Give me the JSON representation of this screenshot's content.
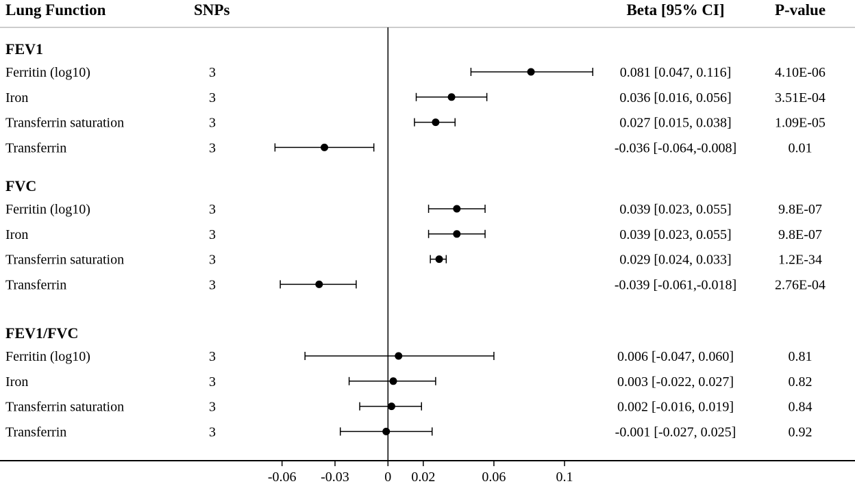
{
  "headers": {
    "lung_function": "Lung Function",
    "snps": "SNPs",
    "beta_ci": "Beta [95% CI]",
    "p_value": "P-value"
  },
  "colors": {
    "point": "#000000",
    "line": "#000000",
    "header_rule": "#bbbbbb"
  },
  "chart_data": {
    "type": "forest",
    "xlabel": "",
    "reference_line": 0,
    "x_ticks": [
      -0.06,
      -0.03,
      0,
      0.02,
      0.06,
      0.1
    ],
    "x_tick_labels": [
      "-0.06",
      "-0.03",
      "0",
      "0.02",
      "0.06",
      "0.1"
    ],
    "groups": [
      {
        "name": "FEV1",
        "rows": [
          {
            "label": "Ferritin (log10)",
            "snps": "3",
            "beta": 0.081,
            "lower": 0.047,
            "upper": 0.116,
            "beta_ci_text": "0.081 [0.047, 0.116]",
            "p_value": "4.10E-06"
          },
          {
            "label": "Iron",
            "snps": "3",
            "beta": 0.036,
            "lower": 0.016,
            "upper": 0.056,
            "beta_ci_text": "0.036 [0.016, 0.056]",
            "p_value": "3.51E-04"
          },
          {
            "label": "Transferrin saturation",
            "snps": "3",
            "beta": 0.027,
            "lower": 0.015,
            "upper": 0.038,
            "beta_ci_text": "0.027 [0.015, 0.038]",
            "p_value": "1.09E-05"
          },
          {
            "label": "Transferrin",
            "snps": "3",
            "beta": -0.036,
            "lower": -0.064,
            "upper": -0.008,
            "beta_ci_text": "-0.036 [-0.064,-0.008]",
            "p_value": "0.01"
          }
        ]
      },
      {
        "name": "FVC",
        "rows": [
          {
            "label": "Ferritin (log10)",
            "snps": "3",
            "beta": 0.039,
            "lower": 0.023,
            "upper": 0.055,
            "beta_ci_text": "0.039 [0.023, 0.055]",
            "p_value": "9.8E-07"
          },
          {
            "label": "Iron",
            "snps": "3",
            "beta": 0.039,
            "lower": 0.023,
            "upper": 0.055,
            "beta_ci_text": "0.039 [0.023, 0.055]",
            "p_value": "9.8E-07"
          },
          {
            "label": "Transferrin saturation",
            "snps": "3",
            "beta": 0.029,
            "lower": 0.024,
            "upper": 0.033,
            "beta_ci_text": "0.029 [0.024, 0.033]",
            "p_value": "1.2E-34"
          },
          {
            "label": "Transferrin",
            "snps": "3",
            "beta": -0.039,
            "lower": -0.061,
            "upper": -0.018,
            "beta_ci_text": "-0.039 [-0.061,-0.018]",
            "p_value": "2.76E-04"
          }
        ]
      },
      {
        "name": "FEV1/FVC",
        "rows": [
          {
            "label": "Ferritin (log10)",
            "snps": "3",
            "beta": 0.006,
            "lower": -0.047,
            "upper": 0.06,
            "beta_ci_text": "0.006 [-0.047, 0.060]",
            "p_value": "0.81"
          },
          {
            "label": "Iron",
            "snps": "3",
            "beta": 0.003,
            "lower": -0.022,
            "upper": 0.027,
            "beta_ci_text": "0.003 [-0.022, 0.027]",
            "p_value": "0.82"
          },
          {
            "label": "Transferrin saturation",
            "snps": "3",
            "beta": 0.002,
            "lower": -0.016,
            "upper": 0.019,
            "beta_ci_text": "0.002 [-0.016, 0.019]",
            "p_value": "0.84"
          },
          {
            "label": "Transferrin",
            "snps": "3",
            "beta": -0.001,
            "lower": -0.027,
            "upper": 0.025,
            "beta_ci_text": "-0.001 [-0.027, 0.025]",
            "p_value": "0.92"
          }
        ]
      }
    ]
  }
}
